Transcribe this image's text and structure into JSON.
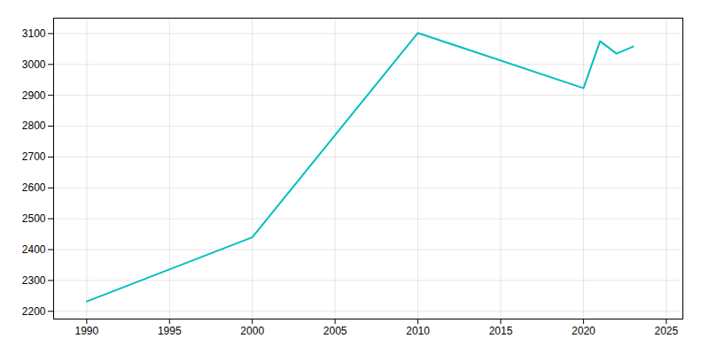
{
  "chart_data": {
    "type": "line",
    "x": [
      1990,
      2000,
      2010,
      2020,
      2021,
      2022,
      2023
    ],
    "values": [
      2232,
      2440,
      3102,
      2923,
      3075,
      3035,
      3058
    ],
    "color": "#00BFBF",
    "xlim": [
      1988,
      2026
    ],
    "ylim": [
      2175,
      3150
    ],
    "xticks": [
      1990,
      1995,
      2000,
      2005,
      2010,
      2015,
      2020,
      2025
    ],
    "yticks": [
      2200,
      2300,
      2400,
      2500,
      2600,
      2700,
      2800,
      2900,
      3000,
      3100
    ],
    "grid": true
  }
}
